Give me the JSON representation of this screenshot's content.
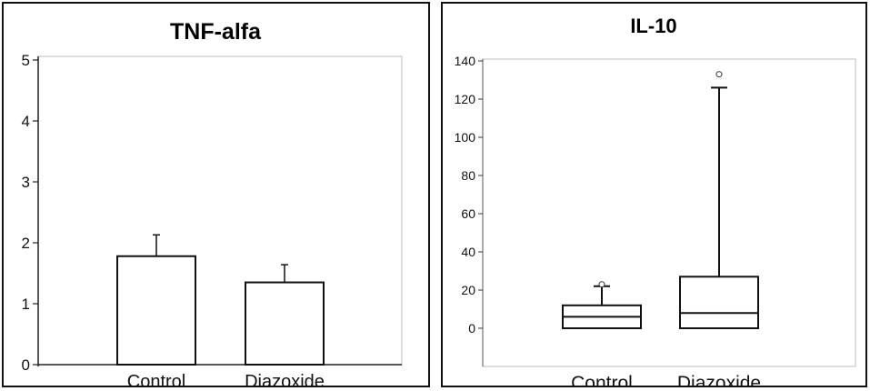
{
  "chart_data": [
    {
      "type": "bar",
      "title": "TNF-alfa",
      "categories": [
        "Control",
        "Diazoxide"
      ],
      "values": [
        1.78,
        1.35
      ],
      "error_upper": [
        2.13,
        1.64
      ],
      "ylim": [
        0,
        5
      ],
      "yticks": [
        "0",
        "1",
        "2",
        "3",
        "4",
        "5"
      ],
      "xlabel": "",
      "ylabel": "",
      "grid": false
    },
    {
      "type": "box",
      "title": "IL-10",
      "categories": [
        "Control",
        "Diazoxide"
      ],
      "boxes": [
        {
          "whisker_low": 0,
          "q1": 0,
          "median": 6,
          "q3": 12,
          "whisker_high": 22,
          "outliers": [
            23
          ]
        },
        {
          "whisker_low": 0,
          "q1": 0,
          "median": 8,
          "q3": 27,
          "whisker_high": 126,
          "outliers": [
            133
          ]
        }
      ],
      "ylim": [
        -20,
        140
      ],
      "yticks": [
        "0",
        "20",
        "40",
        "60",
        "80",
        "100",
        "120",
        "140"
      ],
      "xlabel": "",
      "ylabel": "",
      "grid": false
    }
  ]
}
